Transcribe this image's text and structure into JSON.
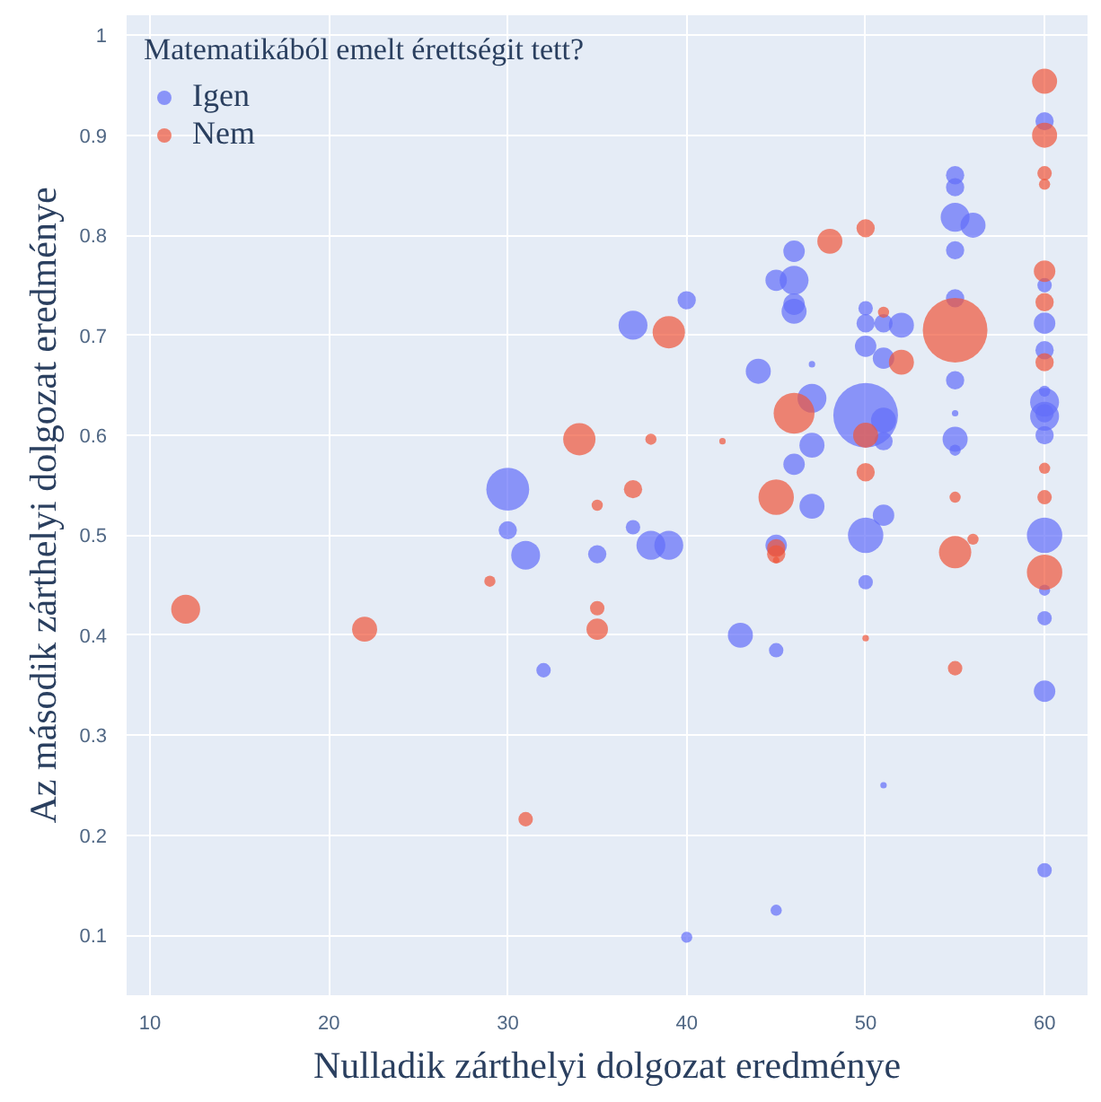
{
  "chart_data": {
    "type": "bubble",
    "xlabel": "Nulladik zárthelyi dolgozat eredménye",
    "ylabel": "Az második zárthelyi dolgozat eredménye",
    "legend_title": "Matematikából emelt érettségit tett?",
    "xlim": [
      8.7,
      62.4
    ],
    "ylim": [
      0.04,
      1.02
    ],
    "xticks": [
      10,
      20,
      30,
      40,
      50,
      60
    ],
    "yticks": [
      0.1,
      0.2,
      0.3,
      0.4,
      0.5,
      0.6,
      0.7,
      0.8,
      0.9,
      1
    ],
    "grid": true,
    "legend": "top left",
    "series": [
      {
        "name": "Igen",
        "color": "#636efa",
        "x": [
          30,
          30,
          31,
          32,
          35,
          37,
          37,
          38,
          39,
          40,
          40,
          43,
          44,
          45,
          45,
          45,
          45,
          46,
          46,
          46,
          46,
          46,
          47,
          47,
          47,
          47,
          50,
          50,
          50,
          50,
          50,
          50,
          51,
          51,
          52,
          51,
          51,
          51,
          51,
          55,
          55,
          55,
          56,
          55,
          55,
          55,
          55,
          55,
          55,
          60,
          60,
          60,
          60,
          60,
          60,
          60,
          60,
          60,
          60,
          60,
          60,
          60,
          60
        ],
        "values": [
          0.546,
          0.505,
          0.48,
          0.365,
          0.481,
          0.71,
          0.508,
          0.49,
          0.49,
          0.735,
          0.098,
          0.4,
          0.664,
          0.755,
          0.385,
          0.125,
          0.49,
          0.784,
          0.755,
          0.731,
          0.724,
          0.571,
          0.671,
          0.637,
          0.59,
          0.529,
          0.62,
          0.5,
          0.453,
          0.727,
          0.712,
          0.689,
          0.615,
          0.594,
          0.71,
          0.712,
          0.677,
          0.52,
          0.25,
          0.86,
          0.848,
          0.818,
          0.81,
          0.785,
          0.737,
          0.655,
          0.622,
          0.596,
          0.585,
          0.914,
          0.75,
          0.712,
          0.685,
          0.644,
          0.633,
          0.619,
          0.6,
          0.5,
          0.445,
          0.417,
          0.344,
          0.165,
          0.622
        ],
        "sizes": [
          0.44,
          0.08,
          0.2,
          0.05,
          0.08,
          0.2,
          0.05,
          0.2,
          0.2,
          0.08,
          0.03,
          0.15,
          0.15,
          0.11,
          0.05,
          0.03,
          0.11,
          0.11,
          0.2,
          0.11,
          0.15,
          0.11,
          0.01,
          0.2,
          0.15,
          0.15,
          1.0,
          0.3,
          0.05,
          0.05,
          0.08,
          0.11,
          0.15,
          0.08,
          0.15,
          0.08,
          0.11,
          0.11,
          0.01,
          0.08,
          0.08,
          0.2,
          0.15,
          0.08,
          0.08,
          0.08,
          0.01,
          0.15,
          0.03,
          0.08,
          0.05,
          0.11,
          0.08,
          0.03,
          0.2,
          0.2,
          0.08,
          0.3,
          0.03,
          0.05,
          0.11,
          0.05,
          0.08
        ]
      },
      {
        "name": "Nem",
        "color": "#ef553b",
        "x": [
          12,
          22,
          29,
          31,
          34,
          35,
          35,
          35,
          37,
          38,
          39,
          42,
          45,
          45,
          45,
          45,
          46,
          48,
          50,
          50,
          50,
          50,
          51,
          52,
          55,
          55,
          55,
          55,
          56,
          60,
          60,
          60,
          60,
          60,
          60,
          60,
          60,
          60,
          60
        ],
        "values": [
          0.426,
          0.406,
          0.454,
          0.216,
          0.596,
          0.53,
          0.427,
          0.406,
          0.546,
          0.596,
          0.703,
          0.594,
          0.538,
          0.487,
          0.481,
          0.475,
          0.622,
          0.794,
          0.807,
          0.6,
          0.563,
          0.397,
          0.723,
          0.673,
          0.705,
          0.483,
          0.538,
          0.367,
          0.496,
          0.954,
          0.9,
          0.862,
          0.851,
          0.764,
          0.733,
          0.673,
          0.567,
          0.538,
          0.463
        ],
        "sizes": [
          0.2,
          0.15,
          0.03,
          0.05,
          0.25,
          0.03,
          0.05,
          0.11,
          0.08,
          0.03,
          0.25,
          0.01,
          0.3,
          0.08,
          0.08,
          0.01,
          0.4,
          0.15,
          0.08,
          0.15,
          0.08,
          0.01,
          0.03,
          0.15,
          1.0,
          0.25,
          0.03,
          0.05,
          0.03,
          0.15,
          0.15,
          0.05,
          0.03,
          0.11,
          0.08,
          0.08,
          0.03,
          0.05,
          0.3
        ]
      }
    ]
  }
}
